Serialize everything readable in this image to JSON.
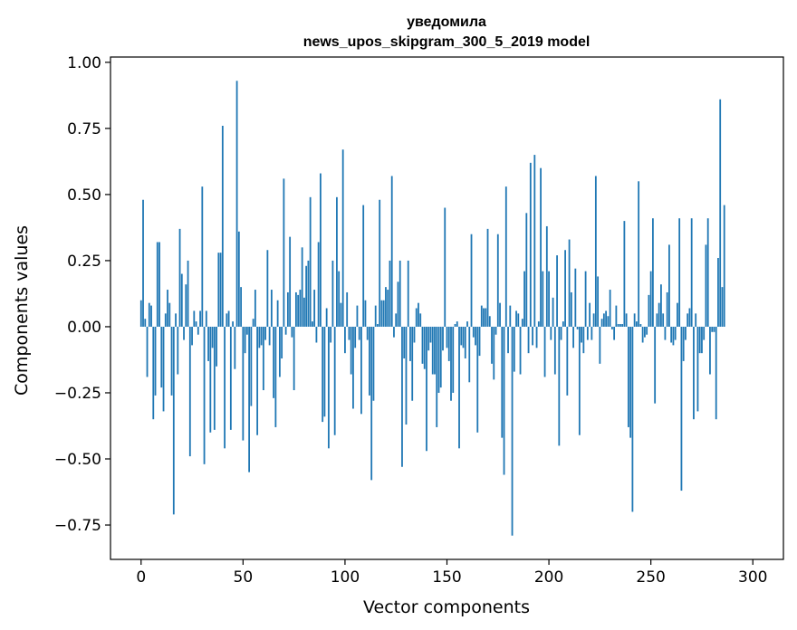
{
  "chart_data": {
    "type": "bar",
    "title_line1": "уведомила",
    "title_line2": "news_upos_skipgram_300_5_2019 model",
    "xlabel": "Vector components",
    "ylabel": "Components values",
    "xlim": [
      -15,
      315
    ],
    "ylim": [
      -0.88,
      1.02
    ],
    "xticks": [
      0,
      50,
      100,
      150,
      200,
      250,
      300
    ],
    "yticks": [
      -0.75,
      -0.5,
      -0.25,
      0.0,
      0.25,
      0.5,
      0.75,
      1.0
    ],
    "ytick_labels": [
      "−0.75",
      "−0.50",
      "−0.25",
      "0.00",
      "0.25",
      "0.50",
      "0.75",
      "1.00"
    ],
    "bar_color": "#1f77b4",
    "values": [
      0.1,
      0.48,
      0.03,
      -0.19,
      0.09,
      0.08,
      -0.35,
      -0.26,
      0.32,
      0.32,
      -0.23,
      -0.32,
      0.05,
      0.14,
      0.09,
      -0.26,
      -0.71,
      0.05,
      -0.18,
      0.37,
      0.2,
      -0.05,
      0.16,
      0.25,
      -0.49,
      -0.07,
      0.06,
      0.02,
      -0.03,
      0.06,
      0.53,
      -0.52,
      0.06,
      -0.13,
      -0.4,
      -0.08,
      -0.39,
      -0.15,
      0.28,
      0.28,
      0.76,
      -0.46,
      0.05,
      0.06,
      -0.39,
      0.02,
      -0.16,
      0.93,
      0.36,
      0.15,
      -0.43,
      -0.1,
      -0.03,
      -0.55,
      -0.3,
      0.03,
      0.14,
      -0.41,
      -0.08,
      -0.07,
      -0.24,
      -0.05,
      0.29,
      -0.07,
      0.14,
      -0.27,
      -0.38,
      0.1,
      -0.19,
      -0.12,
      0.56,
      -0.03,
      0.13,
      0.34,
      -0.04,
      -0.24,
      0.13,
      0.12,
      0.14,
      0.3,
      0.11,
      0.23,
      0.25,
      0.49,
      0.02,
      0.14,
      -0.06,
      0.32,
      0.58,
      -0.36,
      -0.34,
      0.07,
      -0.46,
      -0.06,
      0.25,
      -0.41,
      0.49,
      0.21,
      0.09,
      0.67,
      -0.1,
      0.13,
      -0.05,
      -0.18,
      -0.31,
      -0.08,
      0.08,
      -0.05,
      -0.33,
      0.46,
      0.1,
      -0.05,
      -0.26,
      -0.58,
      -0.28,
      0.08,
      0.01,
      0.48,
      0.1,
      0.1,
      0.15,
      0.14,
      0.25,
      0.57,
      -0.04,
      0.05,
      0.17,
      0.25,
      -0.53,
      -0.12,
      -0.37,
      0.25,
      -0.13,
      -0.28,
      -0.06,
      0.07,
      0.09,
      0.05,
      -0.14,
      -0.16,
      -0.47,
      -0.09,
      -0.06,
      -0.18,
      -0.18,
      -0.38,
      -0.25,
      -0.23,
      -0.09,
      0.45,
      -0.08,
      -0.13,
      -0.28,
      -0.25,
      0.01,
      0.02,
      -0.46,
      -0.07,
      -0.08,
      -0.12,
      0.02,
      -0.21,
      0.35,
      -0.04,
      -0.07,
      -0.4,
      -0.11,
      0.08,
      0.07,
      0.07,
      0.37,
      0.04,
      -0.14,
      -0.2,
      -0.03,
      0.35,
      0.09,
      -0.42,
      -0.56,
      0.53,
      -0.1,
      0.08,
      -0.79,
      -0.17,
      0.06,
      0.05,
      -0.18,
      0.03,
      0.21,
      0.43,
      -0.1,
      0.62,
      -0.07,
      0.65,
      -0.08,
      0.02,
      0.6,
      0.21,
      -0.19,
      0.38,
      0.21,
      -0.05,
      0.11,
      -0.18,
      0.27,
      -0.45,
      -0.05,
      0.02,
      0.29,
      -0.26,
      0.33,
      0.13,
      -0.08,
      0.22,
      -0.01,
      -0.41,
      -0.06,
      -0.1,
      0.21,
      -0.05,
      0.09,
      -0.05,
      0.05,
      0.57,
      0.19,
      -0.14,
      0.03,
      0.05,
      0.06,
      0.04,
      0.14,
      -0.01,
      -0.05,
      0.08,
      0.01,
      0.01,
      0.01,
      0.4,
      0.05,
      -0.38,
      -0.42,
      -0.7,
      0.05,
      0.02,
      0.55,
      0.01,
      -0.06,
      -0.04,
      -0.03,
      0.12,
      0.21,
      0.41,
      -0.29,
      0.05,
      0.09,
      0.16,
      0.05,
      -0.05,
      0.13,
      0.31,
      -0.06,
      -0.07,
      -0.05,
      0.09,
      0.41,
      -0.62,
      -0.13,
      -0.05,
      0.05,
      0.07,
      0.41,
      -0.35,
      0.05,
      -0.32,
      -0.1,
      -0.1,
      -0.05,
      0.31,
      0.41,
      -0.18,
      -0.02,
      -0.02,
      -0.35,
      0.26,
      0.86,
      0.15,
      0.46
    ]
  }
}
